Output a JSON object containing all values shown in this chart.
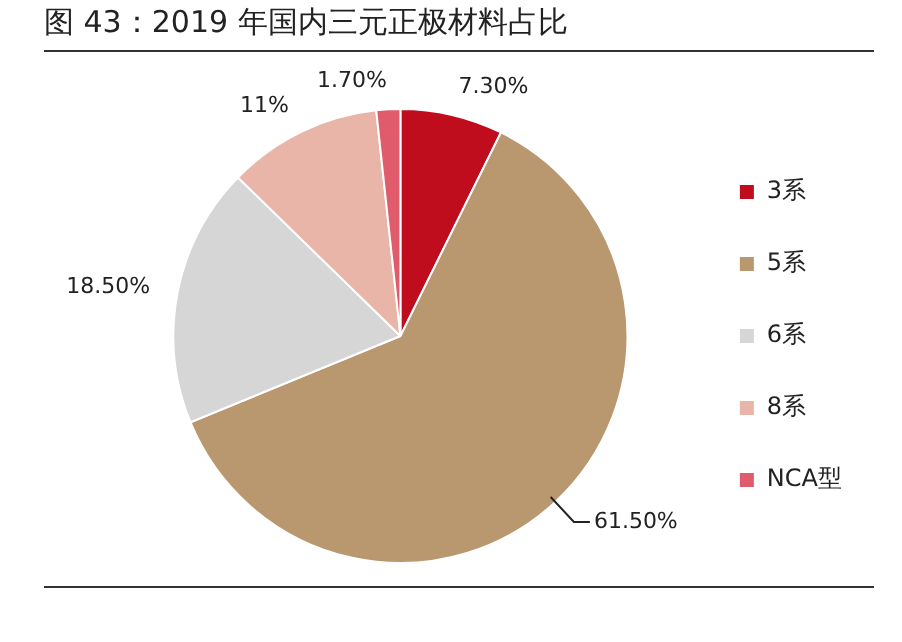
{
  "chart_data": {
    "type": "pie",
    "title": "图 43：2019 年国内三元正极材料占比",
    "categories": [
      "3系",
      "5系",
      "6系",
      "8系",
      "NCA型"
    ],
    "values": [
      7.3,
      61.5,
      18.5,
      11,
      1.7
    ],
    "value_labels": [
      "7.30%",
      "61.50%",
      "18.50%",
      "11%",
      "1.70%"
    ],
    "colors": [
      "#c00d1e",
      "#b9976f",
      "#d6d6d6",
      "#eab5a9",
      "#e05b6b"
    ],
    "legend": "right"
  }
}
